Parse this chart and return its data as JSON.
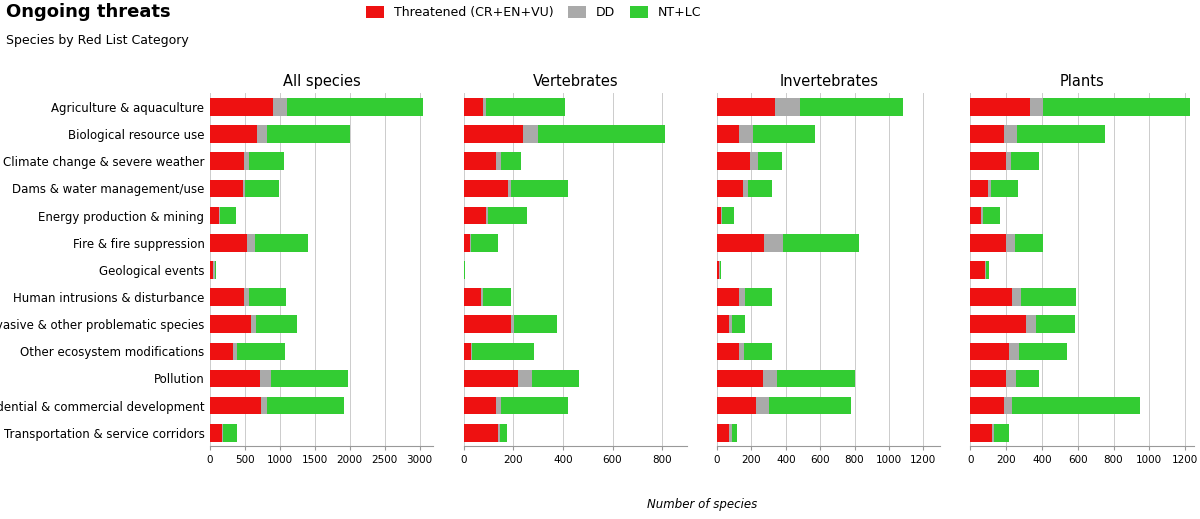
{
  "title": "Ongoing threats",
  "subtitle": "Species by Red List Category",
  "categories": [
    "Agriculture & aquaculture",
    "Biological resource use",
    "Climate change & severe weather",
    "Dams & water management/use",
    "Energy production & mining",
    "Fire & fire suppression",
    "Geological events",
    "Human intrusions & disturbance",
    "Invasive & other problematic species",
    "Other ecosystem modifications",
    "Pollution",
    "Residential & commercial development",
    "Transportation & service corridors"
  ],
  "panels": [
    {
      "title": "All species",
      "xlim": 3200,
      "xticks": [
        0,
        500,
        1000,
        1500,
        2000,
        2500,
        3000
      ],
      "threatened": [
        900,
        680,
        480,
        470,
        130,
        530,
        50,
        480,
        580,
        330,
        720,
        730,
        170
      ],
      "dd": [
        200,
        130,
        80,
        25,
        10,
        120,
        15,
        80,
        80,
        60,
        150,
        90,
        20
      ],
      "ntlc": [
        1950,
        1200,
        500,
        490,
        230,
        760,
        15,
        530,
        580,
        680,
        1100,
        1100,
        190
      ]
    },
    {
      "title": "Vertebrates",
      "xlim": 900,
      "xticks": [
        0,
        200,
        400,
        600,
        800
      ],
      "threatened": [
        80,
        240,
        130,
        180,
        90,
        25,
        0,
        70,
        190,
        30,
        220,
        130,
        140
      ],
      "dd": [
        10,
        60,
        20,
        10,
        10,
        5,
        0,
        10,
        15,
        5,
        55,
        20,
        5
      ],
      "ntlc": [
        320,
        510,
        80,
        230,
        155,
        110,
        5,
        110,
        170,
        250,
        190,
        270,
        30
      ]
    },
    {
      "title": "Invertebrates",
      "xlim": 1300,
      "xticks": [
        0,
        200,
        400,
        600,
        800,
        1000,
        1200
      ],
      "threatened": [
        340,
        130,
        190,
        150,
        25,
        275,
        10,
        130,
        70,
        130,
        265,
        225,
        70
      ],
      "dd": [
        140,
        80,
        50,
        30,
        5,
        110,
        5,
        30,
        15,
        25,
        85,
        75,
        15
      ],
      "ntlc": [
        600,
        360,
        140,
        140,
        70,
        440,
        10,
        160,
        80,
        165,
        450,
        480,
        30
      ]
    },
    {
      "title": "Plants",
      "xlim": 1250,
      "xticks": [
        0,
        200,
        400,
        600,
        800,
        1000,
        1200
      ],
      "threatened": [
        330,
        190,
        200,
        100,
        60,
        200,
        80,
        230,
        310,
        215,
        200,
        185,
        120
      ],
      "dd": [
        75,
        70,
        25,
        15,
        10,
        50,
        5,
        50,
        55,
        55,
        55,
        45,
        10
      ],
      "ntlc": [
        820,
        490,
        160,
        150,
        95,
        155,
        20,
        310,
        220,
        270,
        130,
        720,
        85
      ]
    }
  ],
  "colors": {
    "threatened": "#ee1111",
    "dd": "#aaaaaa",
    "ntlc": "#33cc33"
  },
  "xlabel": "Number of species",
  "bg_color": "#ffffff"
}
